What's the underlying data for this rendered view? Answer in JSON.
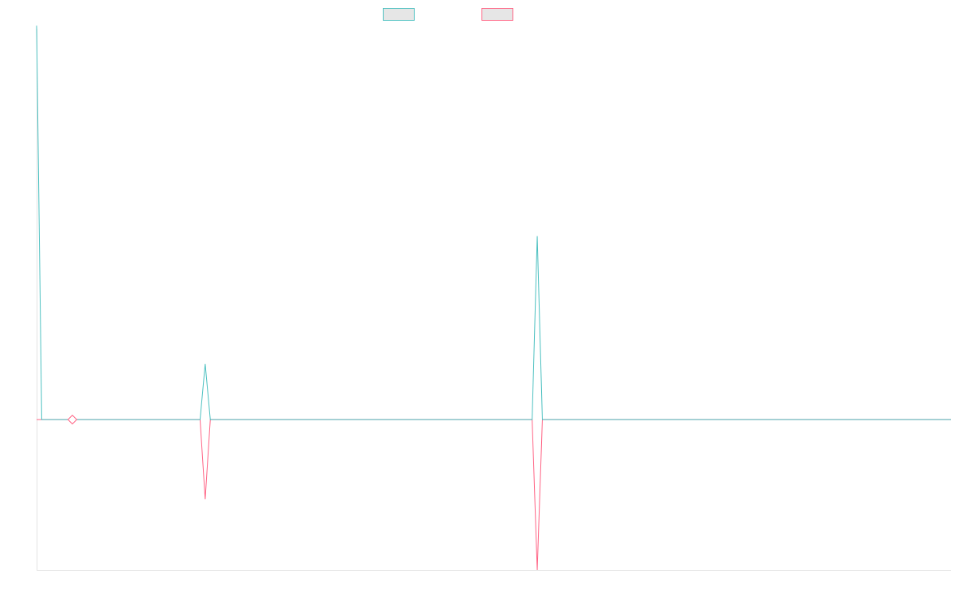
{
  "chart_data": {
    "type": "line",
    "title": "",
    "xlabel": "",
    "ylabel": "",
    "grid": false,
    "legend": {
      "position": "top-center",
      "show_labels": false
    },
    "x": [
      0,
      1,
      2,
      3,
      4,
      5,
      6,
      7,
      8,
      9,
      10,
      11,
      12,
      13,
      14,
      15,
      16,
      17,
      18,
      19,
      20,
      21,
      22,
      23,
      24,
      25,
      26,
      27,
      28,
      29,
      30,
      31,
      32,
      33,
      34,
      35,
      36,
      37,
      38,
      39,
      40,
      41,
      42,
      43,
      44,
      45,
      46,
      47,
      48,
      49,
      50,
      51,
      52,
      53,
      54,
      55,
      56,
      57,
      58,
      59,
      60,
      61,
      62,
      63,
      64,
      65,
      66,
      67,
      68,
      69,
      70,
      71,
      72,
      73,
      74,
      75,
      76,
      77,
      78,
      79,
      80,
      81,
      82,
      83,
      84,
      85,
      86,
      87,
      88,
      89,
      90,
      91,
      92,
      93,
      94,
      95,
      96,
      97,
      98,
      99,
      100,
      101,
      102,
      103,
      104,
      105,
      106,
      107,
      108,
      109,
      110,
      111,
      112,
      113,
      114,
      115,
      116,
      117,
      118,
      119,
      120,
      121,
      122,
      123,
      124,
      125,
      126,
      127,
      128,
      129,
      130,
      131,
      132,
      133,
      134,
      135,
      136,
      137,
      138,
      139,
      140,
      141,
      142,
      143,
      144,
      145,
      146,
      147,
      148,
      149,
      150,
      151,
      152,
      153,
      154,
      155,
      156,
      157,
      158,
      159,
      160,
      161,
      162,
      163,
      164,
      165,
      166,
      167,
      168,
      169,
      170,
      171,
      172,
      173,
      174,
      175,
      176,
      177,
      178,
      179
    ],
    "ylim": [
      -1.0,
      2.6
    ],
    "series": [
      {
        "color": "#4bc0c0",
        "values": [
          2.62,
          0,
          0,
          0,
          0,
          0,
          0,
          0,
          0,
          0,
          0,
          0,
          0,
          0,
          0,
          0,
          0,
          0,
          0,
          0,
          0,
          0,
          0,
          0,
          0,
          0,
          0,
          0,
          0,
          0,
          0,
          0,
          0,
          0.37,
          0,
          0,
          0,
          0,
          0,
          0,
          0,
          0,
          0,
          0,
          0,
          0,
          0,
          0,
          0,
          0,
          0,
          0,
          0,
          0,
          0,
          0,
          0,
          0,
          0,
          0,
          0,
          0,
          0,
          0,
          0,
          0,
          0,
          0,
          0,
          0,
          0,
          0,
          0,
          0,
          0,
          0,
          0,
          0,
          0,
          0,
          0,
          0,
          0,
          0,
          0,
          0,
          0,
          0,
          0,
          0,
          0,
          0,
          0,
          0,
          0,
          0,
          0,
          0,
          1.22,
          0,
          0,
          0,
          0,
          0,
          0,
          0,
          0,
          0,
          0,
          0,
          0,
          0,
          0,
          0,
          0,
          0,
          0,
          0,
          0,
          0,
          0,
          0,
          0,
          0,
          0,
          0,
          0,
          0,
          0,
          0,
          0,
          0,
          0,
          0,
          0,
          0,
          0,
          0,
          0,
          0,
          0,
          0,
          0,
          0,
          0,
          0,
          0,
          0,
          0,
          0,
          0,
          0,
          0,
          0,
          0,
          0,
          0,
          0,
          0,
          0,
          0,
          0,
          0,
          0,
          0,
          0,
          0,
          0,
          0,
          0,
          0,
          0,
          0,
          0,
          0,
          0,
          0,
          0,
          0,
          0
        ]
      },
      {
        "color": "#ff6384",
        "values": [
          0,
          0,
          0,
          0,
          0,
          0,
          0,
          0,
          0,
          0,
          0,
          0,
          0,
          0,
          0,
          0,
          0,
          0,
          0,
          0,
          0,
          0,
          0,
          0,
          0,
          0,
          0,
          0,
          0,
          0,
          0,
          0,
          0,
          -0.53,
          0,
          0,
          0,
          0,
          0,
          0,
          0,
          0,
          0,
          0,
          0,
          0,
          0,
          0,
          0,
          0,
          0,
          0,
          0,
          0,
          0,
          0,
          0,
          0,
          0,
          0,
          0,
          0,
          0,
          0,
          0,
          0,
          0,
          0,
          0,
          0,
          0,
          0,
          0,
          0,
          0,
          0,
          0,
          0,
          0,
          0,
          0,
          0,
          0,
          0,
          0,
          0,
          0,
          0,
          0,
          0,
          0,
          0,
          0,
          0,
          0,
          0,
          0,
          0,
          -1.0,
          0,
          0,
          0,
          0,
          0,
          0,
          0,
          0,
          0,
          0,
          0,
          0,
          0,
          0,
          0,
          0,
          0,
          0,
          0,
          0,
          0,
          0,
          0,
          0,
          0,
          0,
          0,
          0,
          0,
          0,
          0,
          0,
          0,
          0,
          0,
          0,
          0,
          0,
          0,
          0,
          0,
          0,
          0,
          0,
          0,
          0,
          0,
          0,
          0,
          0,
          0,
          0,
          0,
          0,
          0,
          0,
          0,
          0,
          0,
          0,
          0,
          0,
          0,
          0,
          0,
          0,
          0,
          0,
          0,
          0,
          0,
          0,
          0,
          0,
          0,
          0,
          0,
          0,
          0,
          0,
          0
        ]
      }
    ],
    "markers": [
      {
        "x": 7,
        "y": 0,
        "shape": "diamond",
        "fill": "#ffffff",
        "stroke": "#ff6384"
      }
    ]
  }
}
